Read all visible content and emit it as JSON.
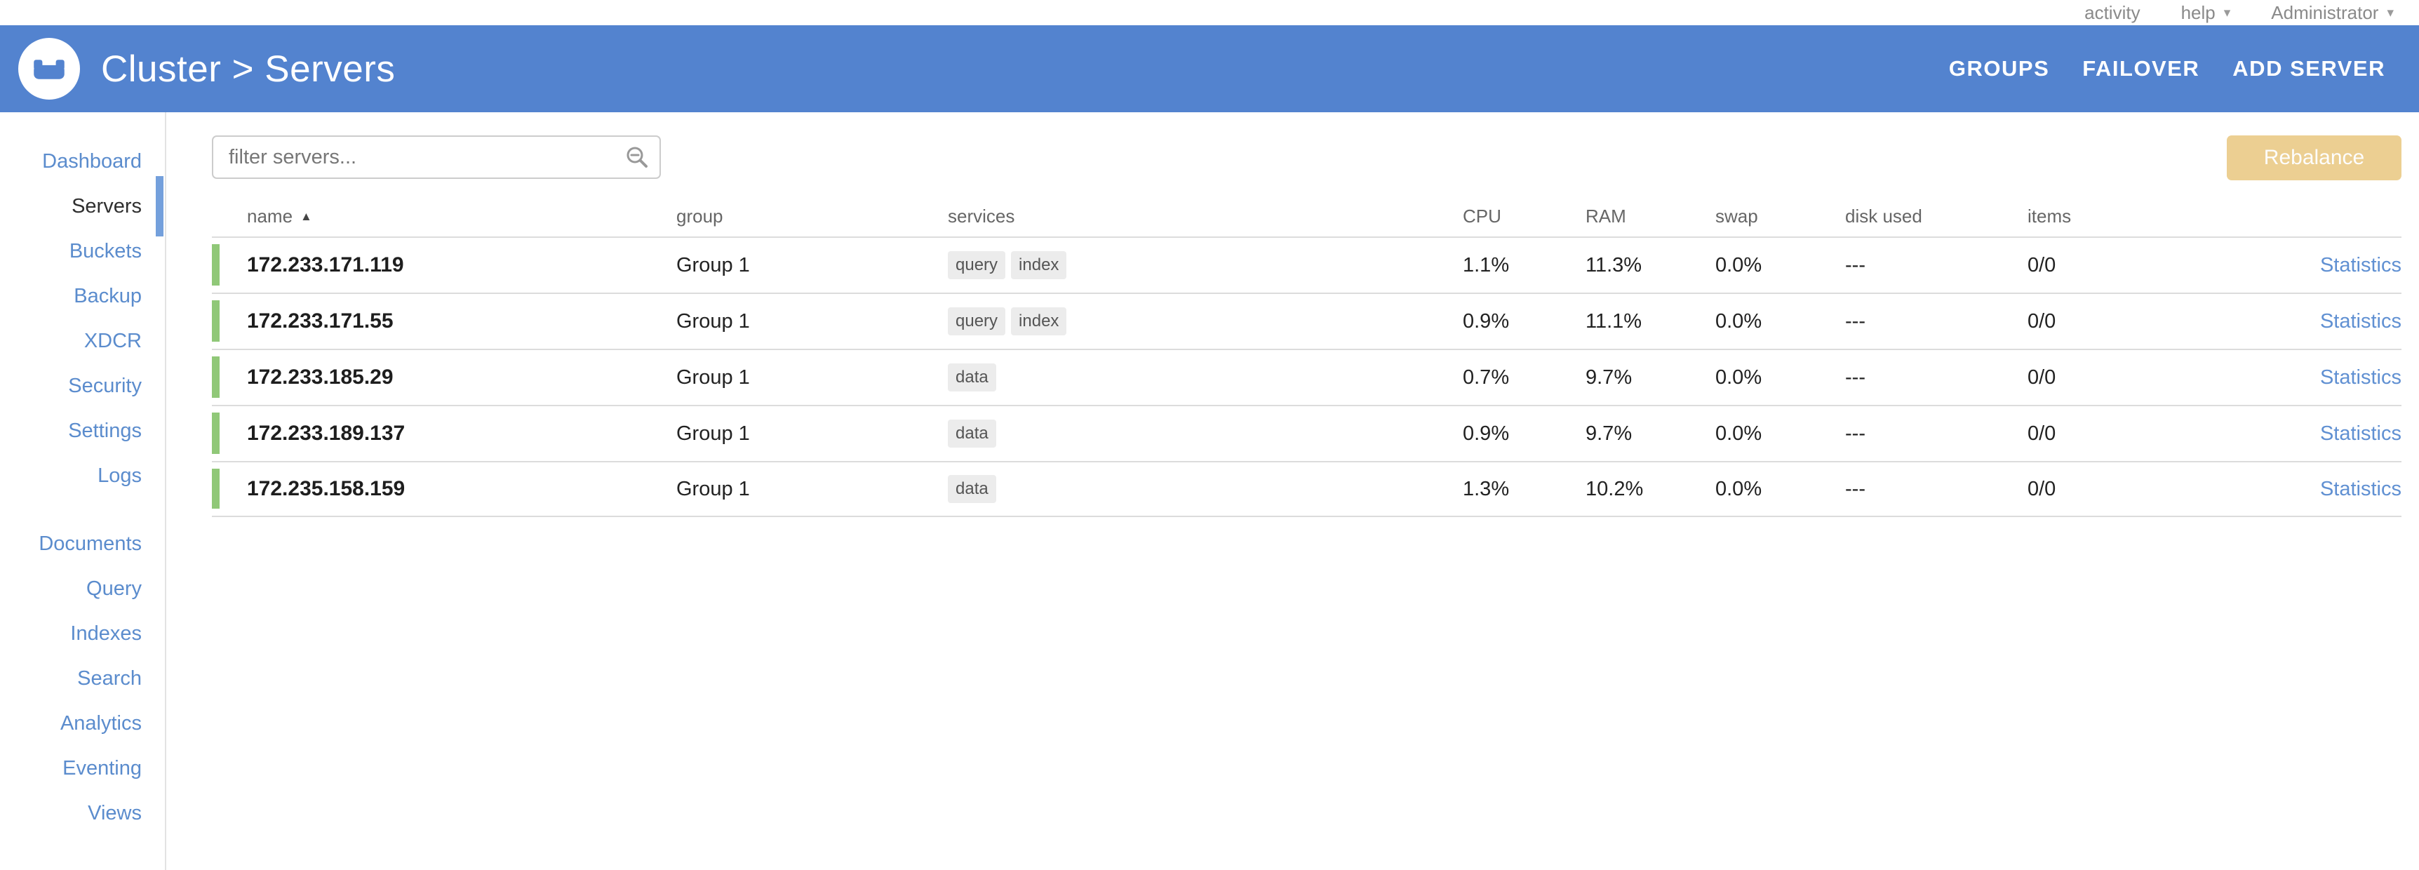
{
  "topbar": {
    "activity_label": "activity",
    "help_label": "help",
    "user_label": "Administrator"
  },
  "header": {
    "title": "Cluster > Servers",
    "nav": [
      {
        "label": "GROUPS"
      },
      {
        "label": "FAILOVER"
      },
      {
        "label": "ADD SERVER"
      }
    ]
  },
  "sidebar": {
    "groups": [
      {
        "items": [
          {
            "label": "Dashboard",
            "active": false
          },
          {
            "label": "Servers",
            "active": true
          },
          {
            "label": "Buckets",
            "active": false
          },
          {
            "label": "Backup",
            "active": false
          },
          {
            "label": "XDCR",
            "active": false
          },
          {
            "label": "Security",
            "active": false
          },
          {
            "label": "Settings",
            "active": false
          },
          {
            "label": "Logs",
            "active": false
          }
        ]
      },
      {
        "items": [
          {
            "label": "Documents",
            "active": false
          },
          {
            "label": "Query",
            "active": false
          },
          {
            "label": "Indexes",
            "active": false
          },
          {
            "label": "Search",
            "active": false
          },
          {
            "label": "Analytics",
            "active": false
          },
          {
            "label": "Eventing",
            "active": false
          },
          {
            "label": "Views",
            "active": false
          }
        ]
      }
    ]
  },
  "toolbar": {
    "filter_placeholder": "filter servers...",
    "filter_value": "",
    "rebalance_label": "Rebalance"
  },
  "table": {
    "headers": {
      "name": "name",
      "group": "group",
      "services": "services",
      "cpu": "CPU",
      "ram": "RAM",
      "swap": "swap",
      "disk_used": "disk used",
      "items": "items"
    },
    "sort_column": "name",
    "sort_direction": "asc",
    "statistics_label": "Statistics",
    "rows": [
      {
        "name": "172.233.171.119",
        "group": "Group 1",
        "services": [
          "query",
          "index"
        ],
        "cpu": "1.1%",
        "ram": "11.3%",
        "swap": "0.0%",
        "disk_used": "---",
        "items": "0/0"
      },
      {
        "name": "172.233.171.55",
        "group": "Group 1",
        "services": [
          "query",
          "index"
        ],
        "cpu": "0.9%",
        "ram": "11.1%",
        "swap": "0.0%",
        "disk_used": "---",
        "items": "0/0"
      },
      {
        "name": "172.233.185.29",
        "group": "Group 1",
        "services": [
          "data"
        ],
        "cpu": "0.7%",
        "ram": "9.7%",
        "swap": "0.0%",
        "disk_used": "---",
        "items": "0/0"
      },
      {
        "name": "172.233.189.137",
        "group": "Group 1",
        "services": [
          "data"
        ],
        "cpu": "0.9%",
        "ram": "9.7%",
        "swap": "0.0%",
        "disk_used": "---",
        "items": "0/0"
      },
      {
        "name": "172.235.158.159",
        "group": "Group 1",
        "services": [
          "data"
        ],
        "cpu": "1.3%",
        "ram": "10.2%",
        "swap": "0.0%",
        "disk_used": "---",
        "items": "0/0"
      }
    ]
  },
  "colors": {
    "header_blue": "#5383cf",
    "sidebar_link_blue": "#5b8ccd",
    "active_indicator_blue": "#74a0dc",
    "health_green": "#90c878",
    "rebalance_tan": "#eccf92",
    "statistics_link_blue": "#6090d2",
    "pill_gray": "#ececec"
  }
}
